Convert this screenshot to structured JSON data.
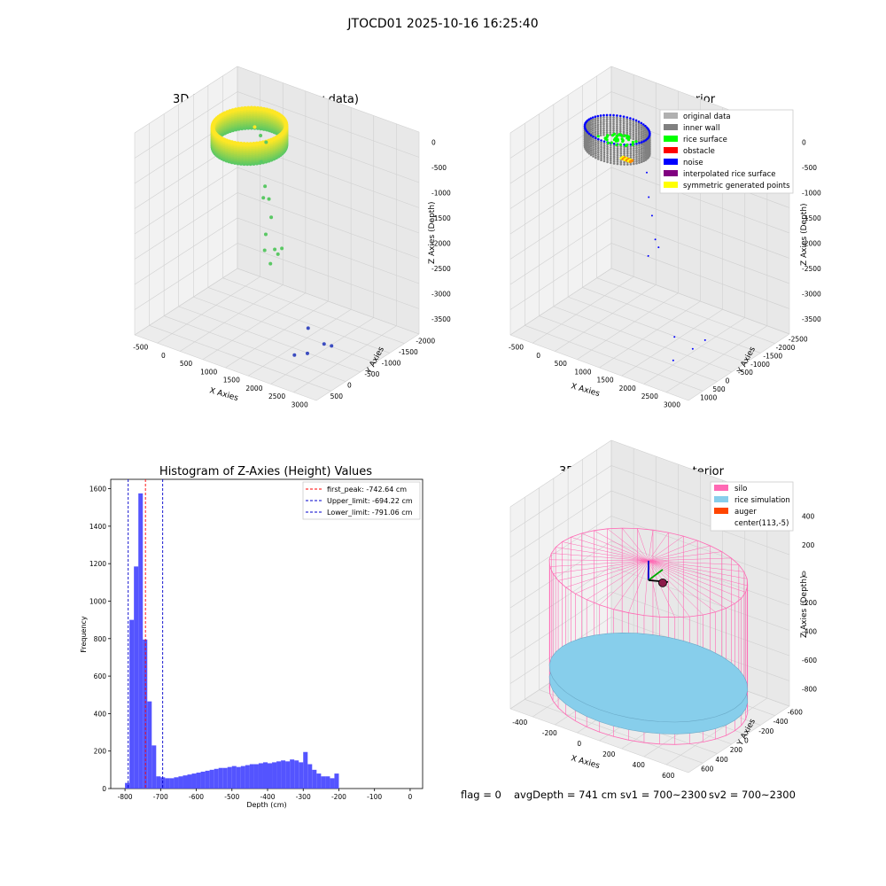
{
  "suptitle": "JTOCD01 2025-10-16 16:25:40",
  "colors": {
    "grid": "#d0d0d0",
    "pane": "#f2f2f2",
    "raw_low": "#3b4cc0",
    "raw_mid": "#5ac864",
    "raw_high": "#fde725",
    "hist_bar": "#4b4bff",
    "peak_line": "#ff0000",
    "limit_line": "#0000cc",
    "silo": "#ff69b4",
    "rice": "#87ceeb",
    "auger": "#ff4500"
  },
  "chart_data": [
    {
      "type": "scatter",
      "subtype": "3d",
      "title": "3D Plot of Silo Interior(row data)",
      "xlabel": "X Axies",
      "ylabel": "Y Axies",
      "zlabel": "Z Axies (Depth)",
      "xticks": [
        "-500",
        "0",
        "500",
        "1000",
        "1500",
        "2000",
        "2500",
        "3000"
      ],
      "yticks": [
        "-2000",
        "-1500",
        "-1000",
        "-500",
        "0",
        "500"
      ],
      "zticks": [
        "0",
        "-500",
        "-1000",
        "-1500",
        "-2000",
        "-2500",
        "-3000",
        "-3500"
      ],
      "xlim": [
        -700,
        3200
      ],
      "ylim": [
        -2100,
        700
      ],
      "zlim": [
        -3700,
        100
      ],
      "points": [
        {
          "x": 80,
          "y": 180,
          "z": -560
        },
        {
          "x": 230,
          "y": 150,
          "z": -660
        },
        {
          "x": 380,
          "y": 110,
          "z": -720
        },
        {
          "x": 300,
          "y": 80,
          "z": -1100
        },
        {
          "x": 420,
          "y": 30,
          "z": -1500
        },
        {
          "x": 360,
          "y": 60,
          "z": -1750
        },
        {
          "x": 520,
          "y": 10,
          "z": -1700
        },
        {
          "x": 600,
          "y": -30,
          "z": -2000
        },
        {
          "x": 460,
          "y": 0,
          "z": -2380
        },
        {
          "x": 700,
          "y": -60,
          "z": -2560
        },
        {
          "x": 420,
          "y": 20,
          "z": -2700
        },
        {
          "x": 560,
          "y": 0,
          "z": -2900
        },
        {
          "x": 800,
          "y": -100,
          "z": -2600
        },
        {
          "x": 900,
          "y": -120,
          "z": -2450
        },
        {
          "x": 2000,
          "y": -800,
          "z": -3300
        },
        {
          "x": 2500,
          "y": -1000,
          "z": -3350
        },
        {
          "x": 2700,
          "y": -1050,
          "z": -3300
        },
        {
          "x": 2300,
          "y": -1200,
          "z": -3500
        },
        {
          "x": 2100,
          "y": -1300,
          "z": -3550
        }
      ],
      "ring": {
        "cx": 113,
        "cy": -5,
        "r": 620,
        "z_top": -450,
        "z_bottom": -820
      }
    },
    {
      "type": "scatter",
      "subtype": "3d",
      "title": "3D classify of Silo Interior",
      "xlabel": "X Axies",
      "ylabel": "Y Axies",
      "zlabel": "Z Axies (Depth)",
      "xticks": [
        "-500",
        "0",
        "500",
        "1000",
        "1500",
        "2000",
        "2500",
        "3000"
      ],
      "yticks": [
        "-2500",
        "-2000",
        "-1500",
        "-1000",
        "-500",
        "0",
        "500",
        "1000"
      ],
      "zticks": [
        "0",
        "-500",
        "-1000",
        "-1500",
        "-2000",
        "-2500",
        "-3000",
        "-3500"
      ],
      "xlim": [
        -700,
        3200
      ],
      "ylim": [
        -2700,
        1200
      ],
      "zlim": [
        -3700,
        100
      ],
      "legend": {
        "position": "upper right",
        "items": [
          {
            "label": "original data",
            "color": "#b0b0b0"
          },
          {
            "label": "inner wall",
            "color": "#808080"
          },
          {
            "label": "rice surface",
            "color": "#00ff00"
          },
          {
            "label": "obstacle",
            "color": "#ff0000"
          },
          {
            "label": "noise",
            "color": "#0000ff"
          },
          {
            "label": "interpolated rice surface",
            "color": "#800080"
          },
          {
            "label": "symmetric generated points",
            "color": "#ffff00"
          }
        ]
      },
      "noise_points": [
        {
          "x": 700,
          "y": 100,
          "z": -1100
        },
        {
          "x": 800,
          "y": 0,
          "z": -1500
        },
        {
          "x": 900,
          "y": -50,
          "z": -1800
        },
        {
          "x": 1000,
          "y": -100,
          "z": -2200
        },
        {
          "x": 1100,
          "y": -150,
          "z": -2300
        },
        {
          "x": 800,
          "y": -20,
          "z": -2600
        },
        {
          "x": 2100,
          "y": -1300,
          "z": -3300
        },
        {
          "x": 2500,
          "y": -1300,
          "z": -3400
        },
        {
          "x": 2600,
          "y": -1000,
          "z": -3300
        },
        {
          "x": 2300,
          "y": -1700,
          "z": -3550
        }
      ],
      "ring": {
        "cx": 113,
        "cy": -5,
        "r": 620,
        "z_top": -450,
        "z_bottom": -820
      }
    },
    {
      "type": "bar",
      "subtype": "histogram",
      "title": "Histogram of Z-Axies (Height) Values",
      "xlabel": "Depth (cm)",
      "ylabel": "Frequency",
      "xlim": [
        -840,
        35
      ],
      "ylim": [
        0,
        1650
      ],
      "xticks": [
        "-800",
        "-700",
        "-600",
        "-500",
        "-400",
        "-300",
        "-200",
        "-100",
        "0"
      ],
      "yticks": [
        "0",
        "200",
        "400",
        "600",
        "800",
        "1000",
        "1200",
        "1400",
        "1600"
      ],
      "bin_start": -800,
      "bin_width": 12.5,
      "values": [
        30,
        900,
        1185,
        1575,
        795,
        465,
        230,
        65,
        60,
        55,
        55,
        60,
        65,
        70,
        75,
        80,
        85,
        90,
        95,
        100,
        105,
        110,
        110,
        115,
        120,
        115,
        120,
        125,
        130,
        130,
        135,
        140,
        135,
        140,
        145,
        150,
        145,
        155,
        150,
        140,
        195,
        130,
        100,
        80,
        65,
        65,
        55,
        80
      ],
      "lines": [
        {
          "label": "first_peak: -742.64 cm",
          "x": -742.64,
          "color": "#ff0000"
        },
        {
          "label": "Upper_limit: -694.22 cm",
          "x": -694.22,
          "color": "#0000cc"
        },
        {
          "label": "Lower_limit: -791.06 cm",
          "x": -791.06,
          "color": "#0000cc"
        }
      ],
      "legend": "upper right"
    },
    {
      "type": "surface",
      "subtype": "3d",
      "title": "3D simulation of Silo Interior",
      "xlabel": "X Axies",
      "ylabel": "Y Axies",
      "zlabel": "Z Axies (Depth)",
      "xticks": [
        "-400",
        "-200",
        "0",
        "200",
        "400",
        "600"
      ],
      "yticks": [
        "-600",
        "-400",
        "-200",
        "0",
        "200",
        "400",
        "600"
      ],
      "zticks": [
        "400",
        "200",
        "0",
        "-200",
        "-400",
        "-600",
        "-800"
      ],
      "xlim": [
        -520,
        760
      ],
      "ylim": [
        -640,
        640
      ],
      "zlim": [
        -900,
        450
      ],
      "legend": {
        "position": "upper right",
        "items": [
          {
            "label": "silo",
            "color": "#ff69b4"
          },
          {
            "label": "rice simulation",
            "color": "#87ceeb"
          },
          {
            "label": "auger",
            "color": "#ff4500"
          },
          {
            "label": "center(113,-5)",
            "color": "none"
          }
        ]
      },
      "silo": {
        "cx": 113,
        "cy": -5,
        "r": 620,
        "z_top": 0,
        "z_bottom": -850
      },
      "rice": {
        "z": -700
      }
    }
  ],
  "footer": {
    "flag": "flag = 0",
    "avg": "avgDepth = 741 cm",
    "sv1": "sv1 = 700~2300",
    "sv2": "sv2 = 700~2300"
  }
}
